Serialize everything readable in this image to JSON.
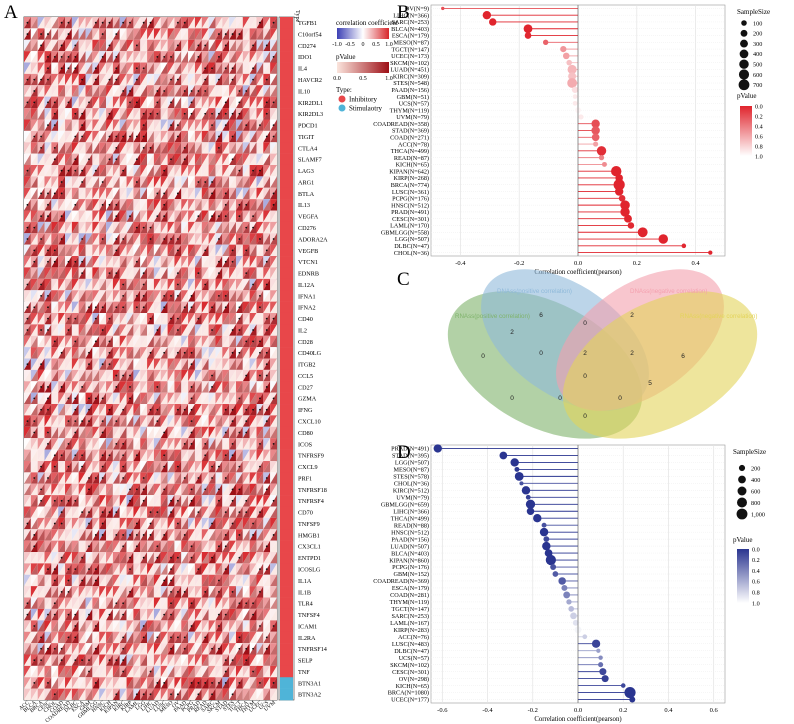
{
  "panel_labels": {
    "a": "A",
    "b": "B",
    "c": "C",
    "d": "D"
  },
  "panel_a": {
    "type_header": "Type",
    "legend": {
      "corr_title": "correlation coefficient",
      "corr_ticks": [
        "-1.0",
        "-0.5",
        "0",
        "0.5",
        "1.0"
      ],
      "p_title": "pValue",
      "p_ticks": [
        "0.0",
        "0.5",
        "1.0"
      ],
      "type_title": "Type:",
      "type_items": [
        {
          "label": "Inhibitory",
          "color": "#e8474a"
        },
        {
          "label": "Stimulaotry",
          "color": "#4fb4d8"
        }
      ]
    },
    "genes": [
      "TGFB1",
      "C10orf54",
      "CD274",
      "IDO1",
      "IL4",
      "HAVCR2",
      "IL10",
      "KIR2DL1",
      "KIR2DL3",
      "PDCD1",
      "TIGIT",
      "CTLA4",
      "SLAMF7",
      "LAG3",
      "ARG1",
      "BTLA",
      "IL13",
      "VEGFA",
      "CD276",
      "ADORA2A",
      "VEGFB",
      "VTCN1",
      "EDNRB",
      "IL12A",
      "IFNA1",
      "IFNA2",
      "CD40",
      "IL2",
      "CD28",
      "CD40LG",
      "ITGB2",
      "CCL5",
      "CD27",
      "GZMA",
      "IFNG",
      "CXCL10",
      "CD80",
      "ICOS",
      "TNFRSF9",
      "CXCL9",
      "PRF1",
      "TNFRSF18",
      "TNFRSF4",
      "CD70",
      "TNFSF9",
      "HMGB1",
      "CX3CL1",
      "ENTPD1",
      "ICOSLG",
      "IL1A",
      "IL1B",
      "TLR4",
      "TNFSF4",
      "ICAM1",
      "IL2RA",
      "TNFRSF14",
      "SELP",
      "TNF",
      "BTN3A1",
      "BTN3A2"
    ],
    "gene_types": [
      "I",
      "I",
      "I",
      "I",
      "I",
      "I",
      "I",
      "I",
      "I",
      "I",
      "I",
      "I",
      "I",
      "I",
      "I",
      "I",
      "I",
      "I",
      "I",
      "I",
      "I",
      "I",
      "I",
      "I",
      "I",
      "I",
      "I",
      "I",
      "I",
      "I",
      "I",
      "I",
      "I",
      "I",
      "I",
      "I",
      "I",
      "I",
      "I",
      "I",
      "I",
      "I",
      "I",
      "I",
      "I",
      "I",
      "I",
      "I",
      "I",
      "I",
      "I",
      "I",
      "I",
      "I",
      "I",
      "I",
      "I",
      "I",
      "S",
      "S"
    ],
    "cancers": [
      "ACC",
      "BLCA",
      "BRCA",
      "CESC",
      "CHOL",
      "COAD",
      "COADREAD",
      "DLBC",
      "ESCA",
      "GBM",
      "GBMLGG",
      "HNSC",
      "KICH",
      "KIPAN",
      "KIRC",
      "KIRP",
      "LAML",
      "LGG",
      "LIHC",
      "LUAD",
      "LUSC",
      "MESO",
      "OV",
      "PAAD",
      "PCPG",
      "PRAD",
      "READ",
      "SARC",
      "SKCM",
      "STAD",
      "STES",
      "TGCT",
      "THCA",
      "THYM",
      "UCEC",
      "UCS",
      "UVM"
    ]
  },
  "panel_b": {
    "xlabel": "Correlation coefficient(pearson)",
    "legend_size_title": "SampleSize",
    "legend_sizes": [
      100,
      200,
      300,
      400,
      500,
      600,
      700
    ],
    "legend_p_title": "pValue",
    "legend_p_ticks": [
      "0.0",
      "0.2",
      "0.4",
      "0.6",
      "0.8",
      "1.0"
    ]
  },
  "panel_c": {
    "sets": [
      {
        "name": "DNAss(positive correlation)",
        "color": "#8fb9da"
      },
      {
        "name": "DNAss(negative correlation)",
        "color": "#f4a0ae"
      },
      {
        "name": "RNAss(positive correlation)",
        "color": "#7fb36b"
      },
      {
        "name": "RNAss(negative correlation)",
        "color": "#e3d45a"
      }
    ],
    "counts": [
      "6",
      "2",
      "2",
      "0",
      "0",
      "2",
      "0",
      "0",
      "0",
      "0",
      "2",
      "6",
      "5",
      "0",
      "0"
    ]
  },
  "panel_d": {
    "xlabel": "Correlation coefficient(pearson)",
    "legend_size_title": "SampleSize",
    "legend_sizes": [
      "200",
      "400",
      "600",
      "800",
      "1,000"
    ],
    "legend_p_title": "pValue",
    "legend_p_ticks": [
      "0.0",
      "0.2",
      "0.4",
      "0.6",
      "0.8",
      "1.0"
    ]
  },
  "chart_data": [
    {
      "type": "heatmap",
      "panel": "A",
      "note_values": "correlation coefficient per cancer (column) for each immune gene (row); each cell split into corr triangle and pValue triangle",
      "xlim": [
        -1,
        1
      ]
    },
    {
      "type": "scatter",
      "panel": "B",
      "categories": [
        "OV(N=9)",
        "LIHC(N=366)",
        "SARC(N=253)",
        "BLCA(N=403)",
        "ESCA(N=179)",
        "MESO(N=87)",
        "TGCT(N=147)",
        "UCEC(N=173)",
        "SKCM(N=102)",
        "LUAD(N=451)",
        "KIRC(N=309)",
        "STES(N=548)",
        "PAAD(N=156)",
        "GBM(N=51)",
        "UCS(N=57)",
        "THYM(N=119)",
        "UVM(N=79)",
        "COADREAD(N=358)",
        "STAD(N=369)",
        "COAD(N=271)",
        "ACC(N=78)",
        "THCA(N=499)",
        "READ(N=87)",
        "KICH(N=65)",
        "KIPAN(N=642)",
        "KIRP(N=268)",
        "BRCA(N=774)",
        "LUSC(N=361)",
        "PCPG(N=176)",
        "HNSC(N=512)",
        "PRAD(N=491)",
        "CESC(N=301)",
        "LAML(N=170)",
        "GBMLGG(N=558)",
        "LGG(N=507)",
        "DLBC(N=47)",
        "CHOL(N=36)"
      ],
      "values": [
        -0.46,
        -0.31,
        -0.29,
        -0.17,
        -0.17,
        -0.11,
        -0.05,
        -0.04,
        -0.03,
        -0.02,
        -0.02,
        -0.02,
        -0.01,
        -0.01,
        -0.01,
        0.0,
        0.01,
        0.06,
        0.06,
        0.06,
        0.06,
        0.08,
        0.08,
        0.09,
        0.13,
        0.14,
        0.14,
        0.14,
        0.15,
        0.16,
        0.16,
        0.17,
        0.18,
        0.22,
        0.29,
        0.36,
        0.45
      ],
      "sizes": [
        9,
        366,
        253,
        403,
        179,
        87,
        147,
        173,
        102,
        451,
        309,
        548,
        156,
        51,
        57,
        119,
        79,
        358,
        369,
        271,
        78,
        499,
        87,
        65,
        642,
        268,
        774,
        361,
        176,
        512,
        491,
        301,
        170,
        558,
        507,
        47,
        36
      ],
      "pvalues": [
        0.2,
        0.0,
        0.0,
        0.0,
        0.02,
        0.3,
        0.55,
        0.6,
        0.75,
        0.7,
        0.75,
        0.65,
        0.9,
        0.95,
        0.95,
        1.0,
        0.95,
        0.2,
        0.25,
        0.3,
        0.6,
        0.05,
        0.45,
        0.5,
        0.0,
        0.0,
        0.0,
        0.0,
        0.05,
        0.0,
        0.0,
        0.0,
        0.02,
        0.0,
        0.0,
        0.02,
        0.01
      ],
      "xlim": [
        -0.5,
        0.5
      ],
      "xticks": [
        "-0.4",
        "-0.2",
        "0.0",
        "0.2",
        "0.4"
      ],
      "xlabel": "Correlation coefficient(pearson)"
    },
    {
      "type": "scatter",
      "panel": "D",
      "categories": [
        "PRAD(N=491)",
        "STAD(N=395)",
        "LGG(N=507)",
        "MESO(N=87)",
        "STES(N=578)",
        "CHOL(N=36)",
        "KIRC(N=512)",
        "UVM(N=79)",
        "GBMLGG(N=659)",
        "LIHC(N=366)",
        "THCA(N=499)",
        "READ(N=88)",
        "HNSC(N=512)",
        "PAAD(N=156)",
        "LUAD(N=507)",
        "BLCA(N=403)",
        "KIPAN(N=860)",
        "PCPG(N=176)",
        "GBM(N=152)",
        "COADREAD(N=369)",
        "ESCA(N=179)",
        "COAD(N=281)",
        "THYM(N=119)",
        "TGCT(N=147)",
        "SARC(N=253)",
        "LAML(N=167)",
        "KIRP(N=283)",
        "ACC(N=76)",
        "LUSC(N=483)",
        "DLBC(N=47)",
        "UCS(N=57)",
        "SKCM(N=102)",
        "CESC(N=301)",
        "OV(N=298)",
        "KICH(N=65)",
        "BRCA(N=1080)",
        "UCEC(N=177)"
      ],
      "values": [
        -0.62,
        -0.33,
        -0.28,
        -0.27,
        -0.26,
        -0.25,
        -0.23,
        -0.22,
        -0.21,
        -0.21,
        -0.18,
        -0.15,
        -0.15,
        -0.14,
        -0.14,
        -0.13,
        -0.12,
        -0.11,
        -0.1,
        -0.07,
        -0.06,
        -0.05,
        -0.04,
        -0.03,
        -0.02,
        -0.01,
        0.0,
        0.03,
        0.08,
        0.09,
        0.1,
        0.1,
        0.11,
        0.12,
        0.2,
        0.23,
        0.24
      ],
      "sizes": [
        491,
        395,
        507,
        87,
        578,
        36,
        512,
        79,
        659,
        366,
        499,
        88,
        512,
        156,
        507,
        403,
        860,
        176,
        152,
        369,
        179,
        281,
        119,
        147,
        253,
        167,
        283,
        76,
        483,
        47,
        57,
        102,
        301,
        298,
        65,
        1080,
        177
      ],
      "pvalues": [
        0.0,
        0.0,
        0.0,
        0.02,
        0.0,
        0.15,
        0.0,
        0.05,
        0.0,
        0.0,
        0.0,
        0.15,
        0.0,
        0.1,
        0.0,
        0.0,
        0.0,
        0.15,
        0.2,
        0.2,
        0.4,
        0.4,
        0.6,
        0.7,
        0.8,
        0.9,
        1.0,
        0.8,
        0.08,
        0.55,
        0.45,
        0.3,
        0.1,
        0.05,
        0.1,
        0.0,
        0.0
      ],
      "xlim": [
        -0.65,
        0.65
      ],
      "xticks": [
        "-0.6",
        "-0.4",
        "-0.2",
        "0.0",
        "0.2",
        "0.4",
        "0.6"
      ],
      "xlabel": "Correlation coefficient(pearson)"
    }
  ]
}
